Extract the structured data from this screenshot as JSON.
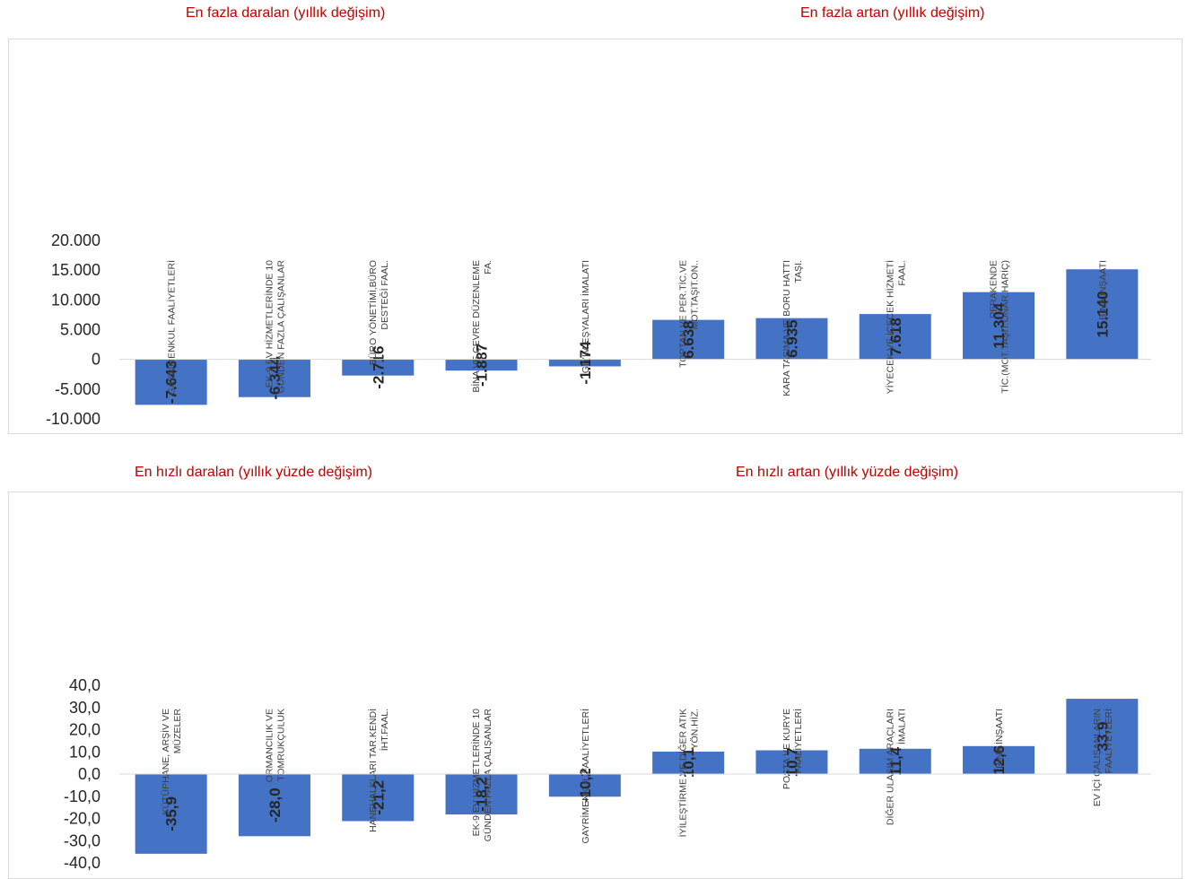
{
  "headings": {
    "top_left": "En fazla daralan (yıllık değişim)",
    "top_right": "En fazla artan (yıllık değişim)",
    "bottom_left": "En hızlı daralan (yıllık yüzde değişim)",
    "bottom_right": "En hızlı artan (yıllık yüzde değişim)"
  },
  "colors": {
    "bar": "#4472c4",
    "heading": "#c00000"
  },
  "chart_data": [
    {
      "type": "bar",
      "categories": [
        [
          "GAYRİMENKUL FAALİYETLERİ"
        ],
        [
          "EK-9 EV HİZMETLERİNDE 10",
          "GÜNDEN FAZLA ÇALIŞANLAR"
        ],
        [
          "BÜRO YÖNETİMİ,BÜRO",
          "DESTEĞİ FAAL."
        ],
        [
          "BİNA VE ÇEVRE DÜZENLEME",
          "FA."
        ],
        [
          "GİYİM EŞYALARI İMALATI"
        ],
        [
          "TOPTAN VE PER.TİC.VE",
          "MOT.TAŞIT.ON.."
        ],
        [
          "KARA TAŞIMA.VE BORU HATTI",
          "TAŞI."
        ],
        [
          "YİYECEK VE İÇECEK HİZMETİ",
          "FAAL."
        ],
        [
          "PERAKENDE",
          "TİC.(MOT.TAŞIT.ONAR.HARİÇ)"
        ],
        [
          "BİNA İNŞAATI"
        ]
      ],
      "values": [
        -7643,
        -6344,
        -2716,
        -1887,
        -1174,
        6638,
        6935,
        7618,
        11304,
        15140
      ],
      "value_labels": [
        "-7.643",
        "-6.344",
        "-2.716",
        "-1.887",
        "-1.174",
        "6.638",
        "6.935",
        "7.618",
        "11.304",
        "15.140"
      ],
      "ylim": [
        -10000,
        20000
      ],
      "ticks": [
        20000,
        15000,
        10000,
        5000,
        0,
        -5000,
        -10000
      ],
      "tick_labels": [
        "20.000",
        "15.000",
        "10.000",
        "5.000",
        "0",
        "-5.000",
        "-10.000"
      ],
      "grid": false,
      "legend": "none"
    },
    {
      "type": "bar",
      "categories": [
        [
          "KÜTÜPHANE, ARŞİV VE",
          "MÜZELER"
        ],
        [
          "ORMANCILIK VE",
          "TOMRUKÇULUK"
        ],
        [
          "HANEHALKLARI TAR.KENDİ",
          "İHT.FAAL."
        ],
        [
          "EK-9 EV HİZMETLERİNDE 10",
          "GÜNDEN FAZLA ÇALIŞANLAR"
        ],
        [
          "GAYRİMENKUL FAALİYETLERİ"
        ],
        [
          "İYİLEŞTİRME VE DİĞER ATIK",
          "YÖN.HİZ."
        ],
        [
          "POSTA VE KURYE",
          "FAALİYETLERİ"
        ],
        [
          "DİĞER ULAŞIM ARAÇLARI",
          "İMALATI"
        ],
        [
          "BİNA İNŞAATI"
        ],
        [
          "EV İÇİ ÇALIŞANLARIN",
          "FAALİYETLERİ"
        ]
      ],
      "values": [
        -35.9,
        -28.0,
        -21.2,
        -18.2,
        -10.2,
        10.1,
        10.7,
        11.4,
        12.6,
        33.9
      ],
      "value_labels": [
        "-35,9",
        "-28,0",
        "-21,2",
        "-18,2",
        "-10,2",
        "10,1",
        "10,7",
        "11,4",
        "12,6",
        "33,9"
      ],
      "ylim": [
        -40,
        40
      ],
      "ticks": [
        40,
        30,
        20,
        10,
        0,
        -10,
        -20,
        -30,
        -40
      ],
      "tick_labels": [
        "40,0",
        "30,0",
        "20,0",
        "10,0",
        "0,0",
        "-10,0",
        "-20,0",
        "-30,0",
        "-40,0"
      ],
      "grid": false,
      "legend": "none"
    }
  ]
}
